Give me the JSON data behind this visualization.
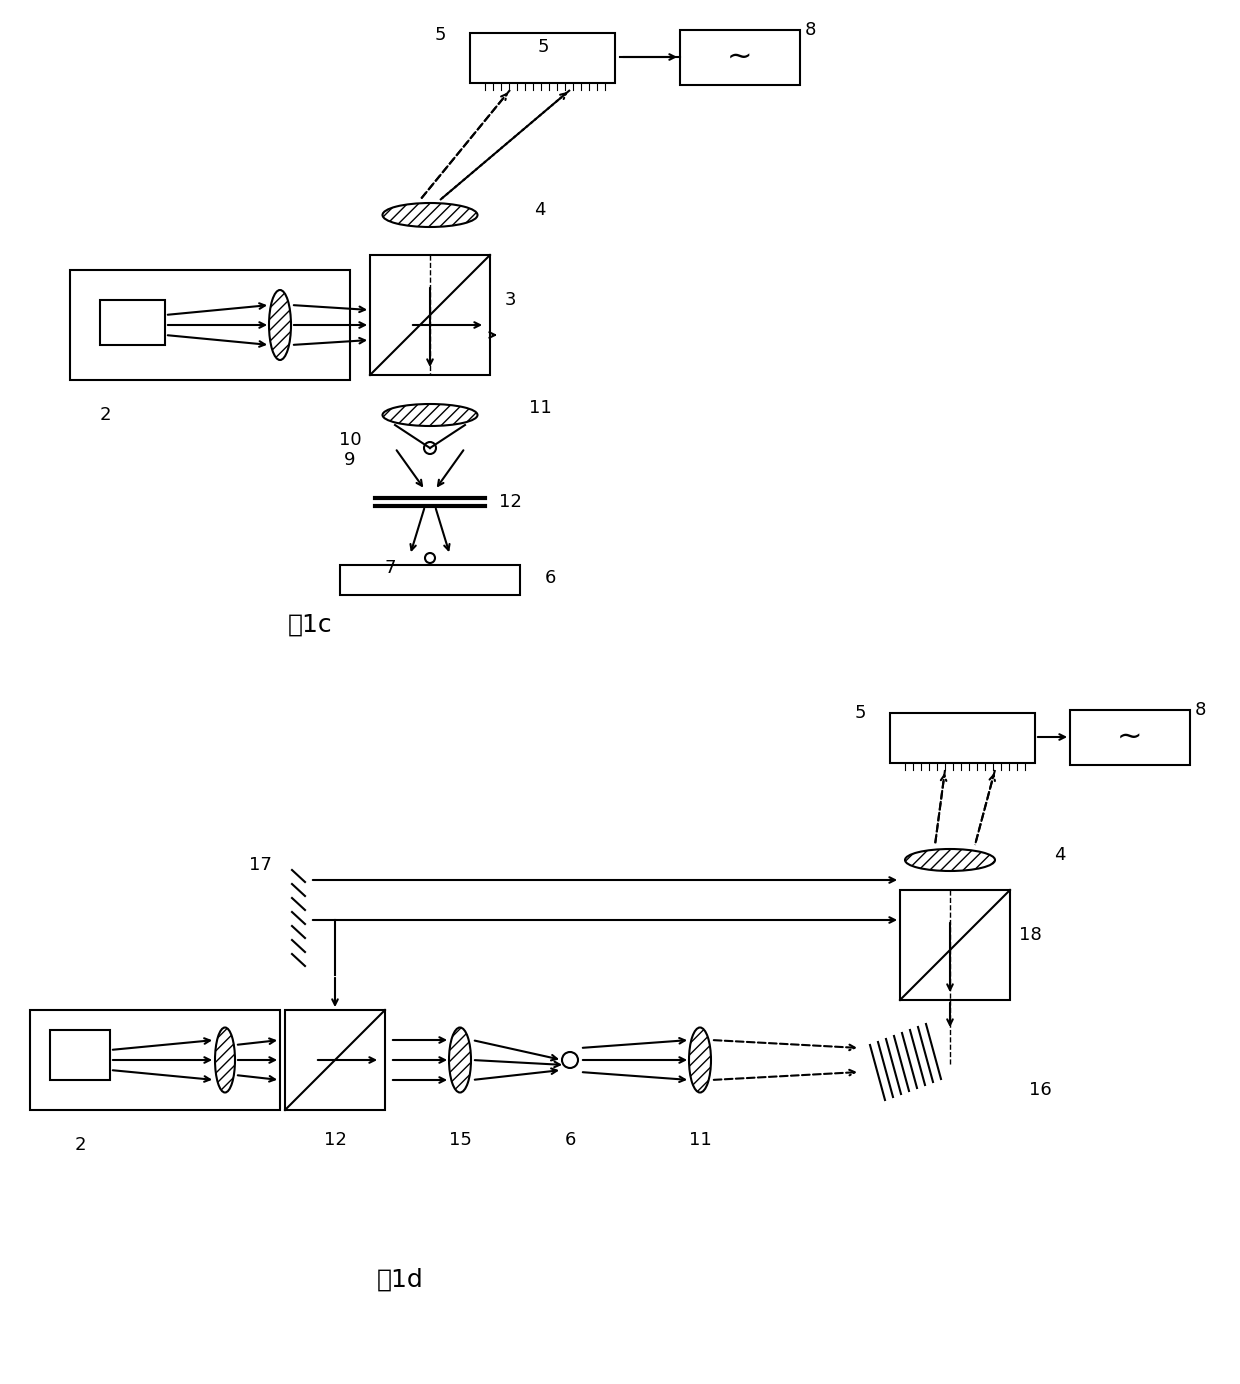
{
  "fig1c_label": "图1c",
  "fig1d_label": "图1d",
  "background": "#ffffff",
  "line_color": "#000000",
  "hatch_color": "#000000",
  "font_size_label": 16,
  "font_size_number": 13,
  "font_size_fig": 18
}
